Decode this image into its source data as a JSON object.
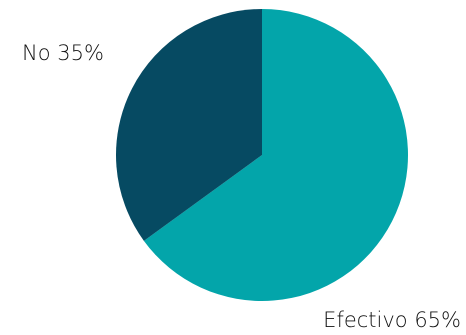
{
  "chart_data": {
    "type": "pie",
    "slices": [
      {
        "label": "Efectivo",
        "value": 65,
        "color": "#03A5AA",
        "display": "Efectivo 65%",
        "label_pos": "bottom-right"
      },
      {
        "label": "No",
        "value": 35,
        "color": "#064A62",
        "display": "No 35%",
        "label_pos": "top-left"
      }
    ],
    "start": "12 o'clock",
    "direction": "clockwise",
    "legend": "none"
  }
}
